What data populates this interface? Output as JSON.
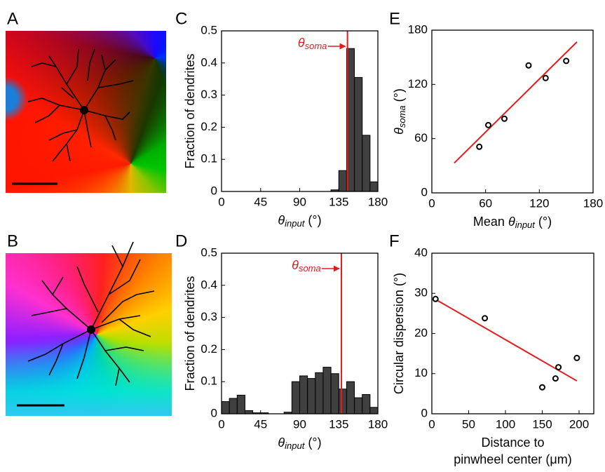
{
  "images": [
    {
      "panel": "A"
    },
    {
      "panel": "B"
    }
  ],
  "chart_data": [
    {
      "type": "histogram",
      "panel": "C",
      "bins": [
        0,
        9,
        18,
        27,
        36,
        45,
        54,
        63,
        72,
        81,
        90,
        99,
        108,
        117,
        126,
        135,
        144,
        153,
        162,
        171,
        180
      ],
      "counts": [
        0,
        0,
        0,
        0,
        0,
        0,
        0,
        0,
        0,
        0,
        0,
        0,
        0,
        0,
        0.005,
        0.065,
        0.445,
        0.355,
        0.175,
        0.03
      ],
      "color": "#404040",
      "line_color": "#e41a1c",
      "vline": 145,
      "annotation": {
        "symbol": "θ",
        "sub": "soma"
      },
      "xlabel": {
        "symbol": "θ",
        "sub": "input",
        "suffix": "(°)"
      },
      "ylabel": "Fraction of dendrites",
      "xlim": [
        0,
        180
      ],
      "xticks": [
        0,
        45,
        90,
        135,
        180
      ],
      "ylim": [
        0,
        0.5
      ],
      "yticks": [
        0,
        0.1,
        0.2,
        0.3,
        0.4,
        0.5
      ]
    },
    {
      "type": "histogram",
      "panel": "D",
      "bins": [
        0,
        9,
        18,
        27,
        36,
        45,
        54,
        63,
        72,
        81,
        90,
        99,
        108,
        117,
        126,
        135,
        144,
        153,
        162,
        171,
        180
      ],
      "counts": [
        0.038,
        0.048,
        0.058,
        0.01,
        0.003,
        0.003,
        0,
        0,
        0.005,
        0.1,
        0.118,
        0.11,
        0.128,
        0.145,
        0.125,
        0.077,
        0.1,
        0.05,
        0.06,
        0.02
      ],
      "color": "#404040",
      "line_color": "#e41a1c",
      "vline": 138,
      "annotation": {
        "symbol": "θ",
        "sub": "soma"
      },
      "xlabel": {
        "symbol": "θ",
        "sub": "input",
        "suffix": "(°)"
      },
      "ylabel": "Fraction of dendrites",
      "xlim": [
        0,
        180
      ],
      "xticks": [
        0,
        45,
        90,
        135,
        180
      ],
      "ylim": [
        0,
        0.5
      ],
      "yticks": [
        0,
        0.1,
        0.2,
        0.3,
        0.4,
        0.5
      ]
    },
    {
      "type": "scatter",
      "panel": "E",
      "points": {
        "x": [
          53,
          63,
          81,
          108,
          127,
          150
        ],
        "y": [
          51,
          75,
          82,
          141,
          127,
          146
        ]
      },
      "fit": {
        "x": [
          25,
          162
        ],
        "y": [
          33,
          167
        ]
      },
      "line_color": "#e41a1c",
      "xlabel": {
        "prefix": "Mean",
        "symbol": "θ",
        "sub": "input",
        "suffix": "(°)"
      },
      "ylabel": {
        "symbol": "θ",
        "sub": "soma",
        "suffix": "(°)"
      },
      "xlim": [
        0,
        180
      ],
      "xticks": [
        0,
        60,
        120,
        180
      ],
      "ylim": [
        0,
        180
      ],
      "yticks": [
        0,
        60,
        120,
        180
      ]
    },
    {
      "type": "scatter",
      "panel": "F",
      "points": {
        "x": [
          5,
          72,
          150,
          168,
          172,
          197
        ],
        "y": [
          28.6,
          23.8,
          6.6,
          8.8,
          11.6,
          13.9
        ]
      },
      "fit": {
        "x": [
          5,
          197
        ],
        "y": [
          28.5,
          8.2
        ]
      },
      "line_color": "#e41a1c",
      "xlabel": [
        "Distance to",
        "pinwheel center (μm)"
      ],
      "ylabel": "Circular dispersion (°)",
      "xlim": [
        0,
        220
      ],
      "xticks": [
        0,
        50,
        100,
        150,
        200
      ],
      "ylim": [
        0,
        40
      ],
      "yticks": [
        0,
        10,
        20,
        30,
        40
      ]
    }
  ]
}
